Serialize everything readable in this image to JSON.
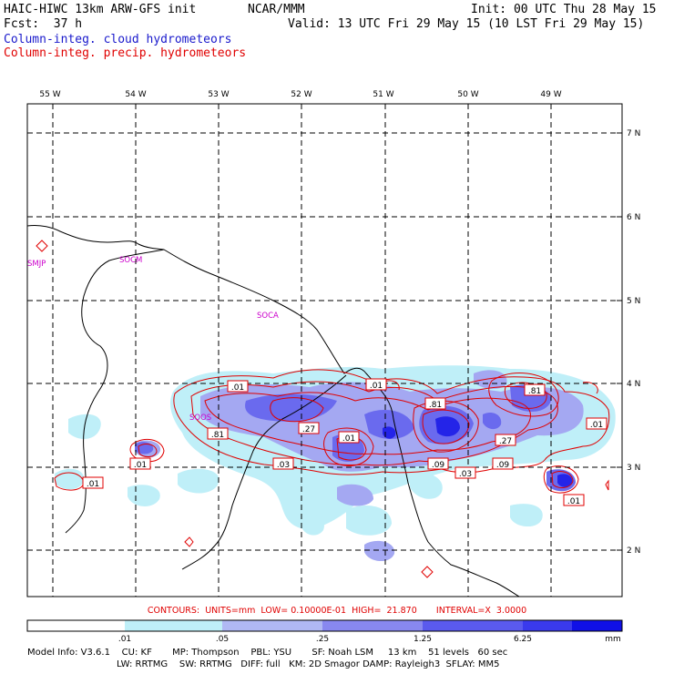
{
  "header": {
    "model_title": "HAIC-HIWC 13km ARW-GFS init",
    "org": "NCAR/MMM",
    "init": "Init: 00 UTC Thu 28 May 15",
    "fcst": "Fcst:  37 h",
    "valid": "Valid: 13 UTC Fri 29 May 15 (10 LST Fri 29 May 15)",
    "field_cloud": "Column-integ. cloud hydrometeors",
    "field_precip": "Column-integ. precip. hydrometeors"
  },
  "map": {
    "lon_labels": [
      "55 W",
      "54 W",
      "53 W",
      "52 W",
      "51 W",
      "50 W",
      "49 W"
    ],
    "lat_labels": [
      "7 N",
      "6 N",
      "5 N",
      "4 N",
      "3 N",
      "2 N"
    ],
    "stations": [
      "SMJP",
      "SOCM",
      "SOCA",
      "SOOS"
    ],
    "contour_labels": [
      ".01",
      ".01",
      ".81",
      ".27",
      ".01",
      ".01",
      ".81",
      ".81",
      ".01",
      ".27",
      ".09",
      ".03",
      ".09",
      ".01",
      ".03",
      ".81",
      ".01"
    ],
    "colors": {
      "cloud_light": "#bfeff8",
      "cloud_mid": "#9999f0",
      "cloud_strong": "#6060ee",
      "cloud_dark": "#2020e8",
      "contour": "#e00000",
      "station": "#cc00cc"
    }
  },
  "contours_line": {
    "label": "CONTOURS:",
    "units": "UNITS=mm",
    "low": "LOW= 0.10000E-01",
    "high": "HIGH=  21.870",
    "interval": "INTERVAL=X  3.0000"
  },
  "colorbar": {
    "tick_labels": [
      ".01",
      ".05",
      ".25",
      "1.25",
      "6.25"
    ],
    "unit": "mm",
    "fill_colors": [
      "#ffffff",
      "#bfeff8",
      "#b0b8f4",
      "#8888f0",
      "#5a5aee",
      "#3a3aec",
      "#1010e6"
    ]
  },
  "model_info": {
    "line1": "Model Info: V3.6.1    CU: KF       MP: Thompson    PBL: YSU       SF: Noah LSM     13 km    51 levels   60 sec",
    "line2": "LW: RRTMG    SW: RRTMG   DIFF: full   KM: 2D Smagor DAMP: Rayleigh3  SFLAY: MM5"
  }
}
